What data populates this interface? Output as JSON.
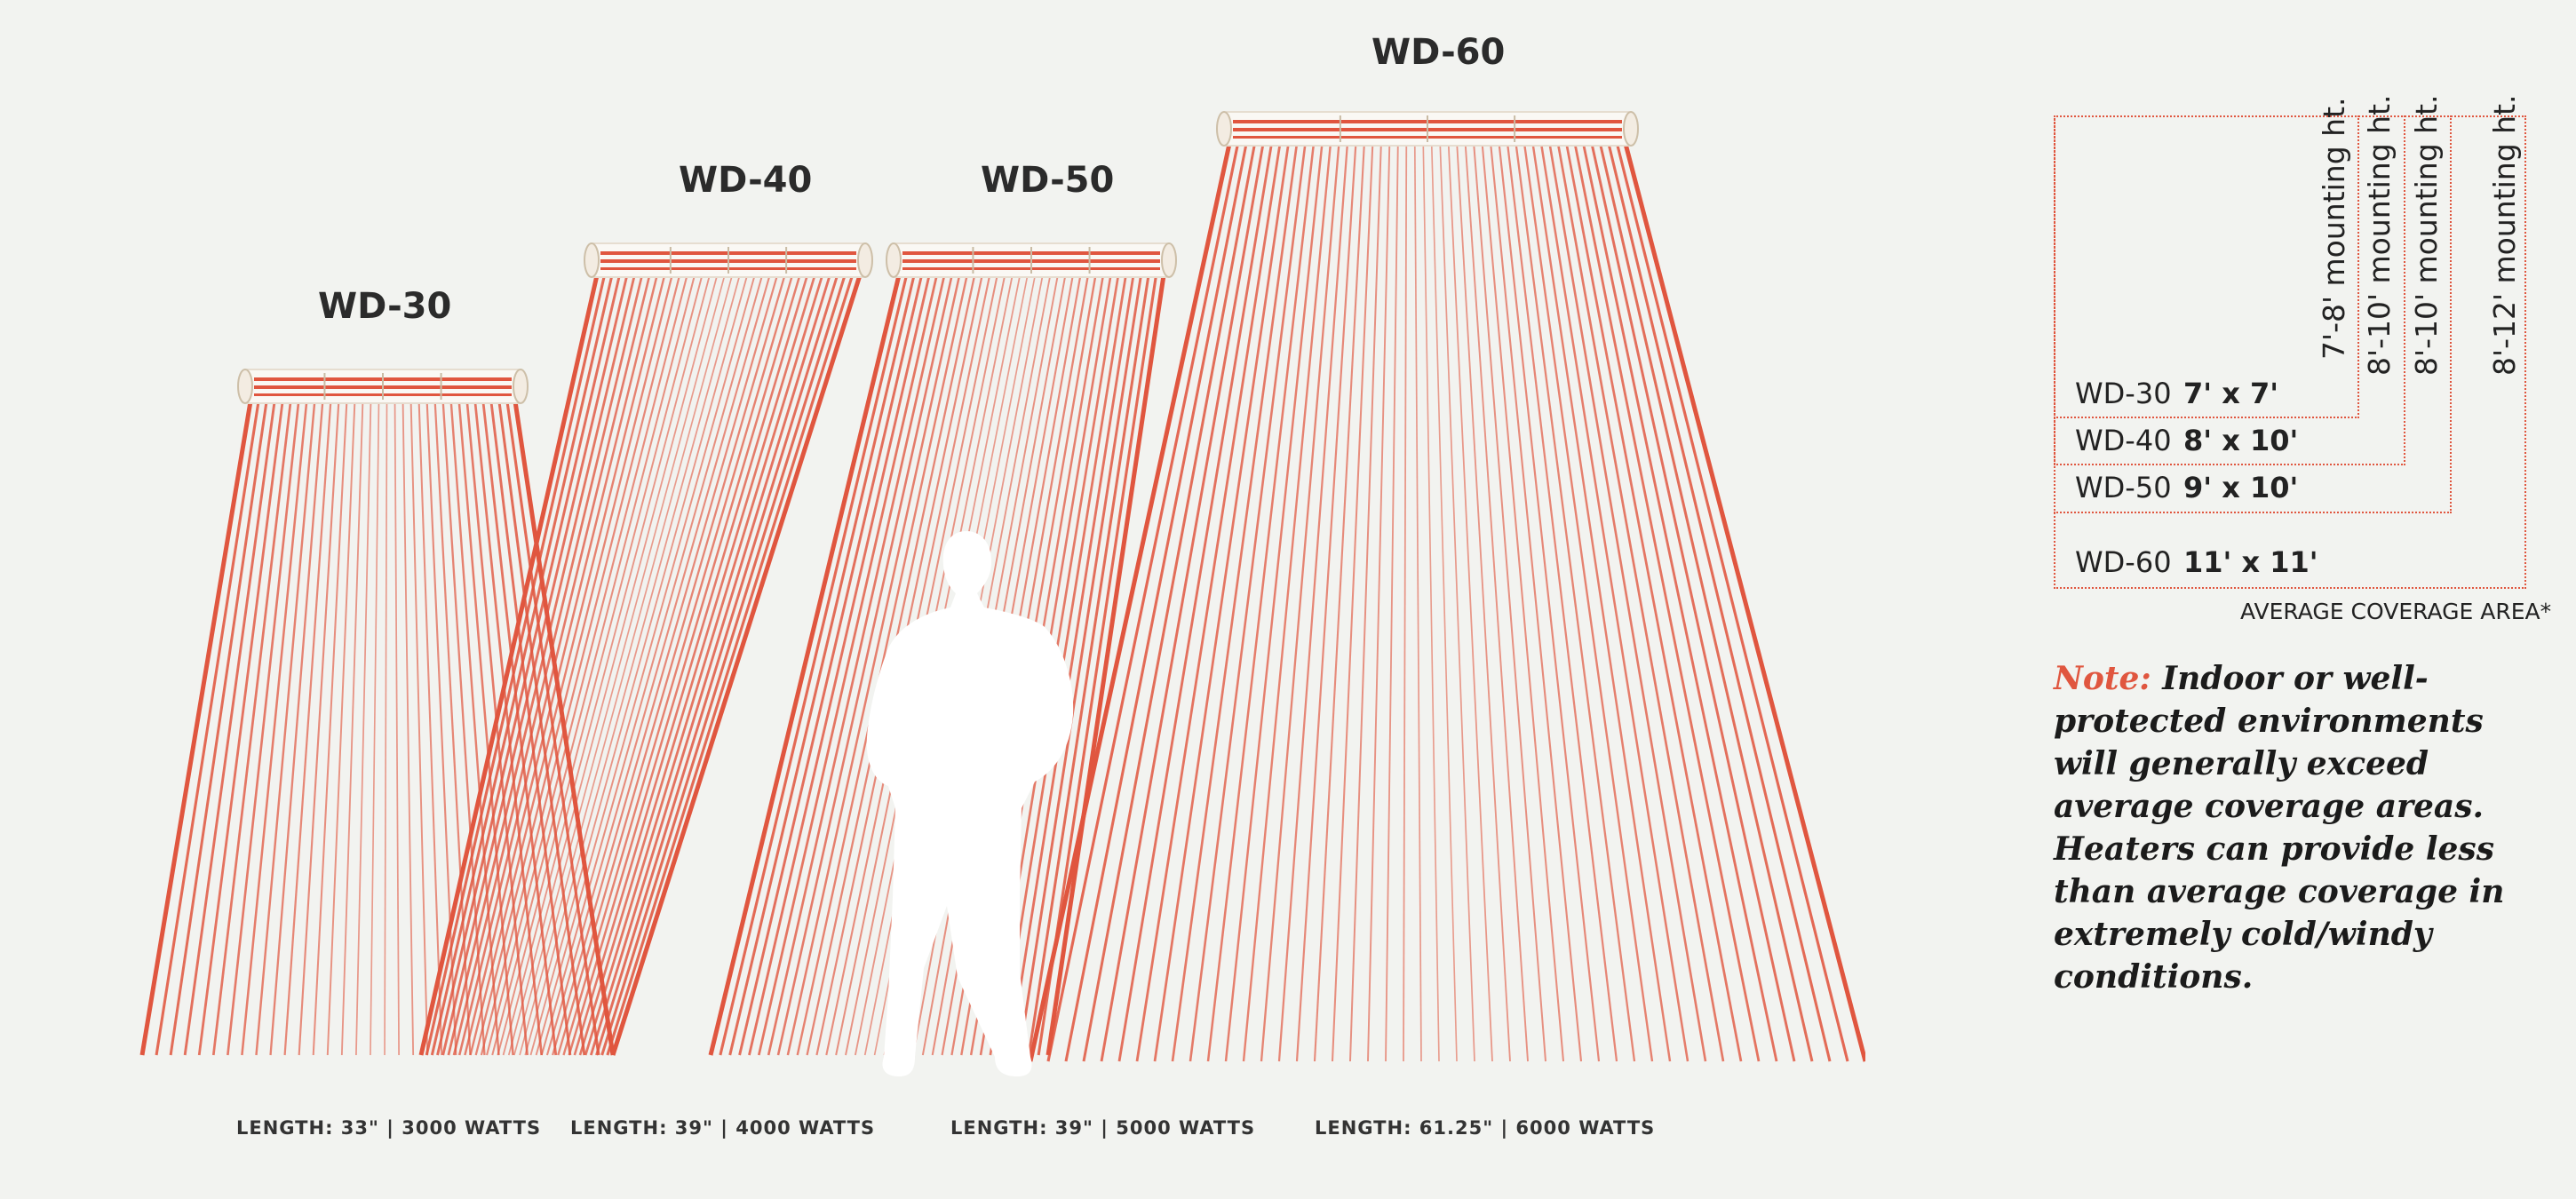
{
  "heaters": [
    {
      "model": "WD-30",
      "spec": "LENGTH: 33\" | 3000 WATTS"
    },
    {
      "model": "WD-40",
      "spec": "LENGTH: 39\" | 4000 WATTS"
    },
    {
      "model": "WD-50",
      "spec": "LENGTH: 39\" | 5000 WATTS"
    },
    {
      "model": "WD-60",
      "spec": "LENGTH: 61.25\" | 6000 WATTS"
    }
  ],
  "coverage": {
    "mounting_heights": [
      "7'-8' mounting ht.",
      "8'-10' mounting ht.",
      "8'-10' mounting ht.",
      "8'-12' mounting ht."
    ],
    "rows": [
      {
        "model": "WD-30",
        "area": "7' x 7'"
      },
      {
        "model": "WD-40",
        "area": "8' x 10'"
      },
      {
        "model": "WD-50",
        "area": "9' x 10'"
      },
      {
        "model": "WD-60",
        "area": "11' x 11'"
      }
    ],
    "caption": "AVERAGE COVERAGE AREA*"
  },
  "note": {
    "label": "Note:",
    "text": "Indoor or well-protected environments will generally exceed average coverage areas. Heaters can provide less than average coverage in extremely cold/windy conditions."
  },
  "colors": {
    "ray": "#e0563f",
    "background": "#f2f3f0",
    "silhouette": "#ffffff"
  }
}
